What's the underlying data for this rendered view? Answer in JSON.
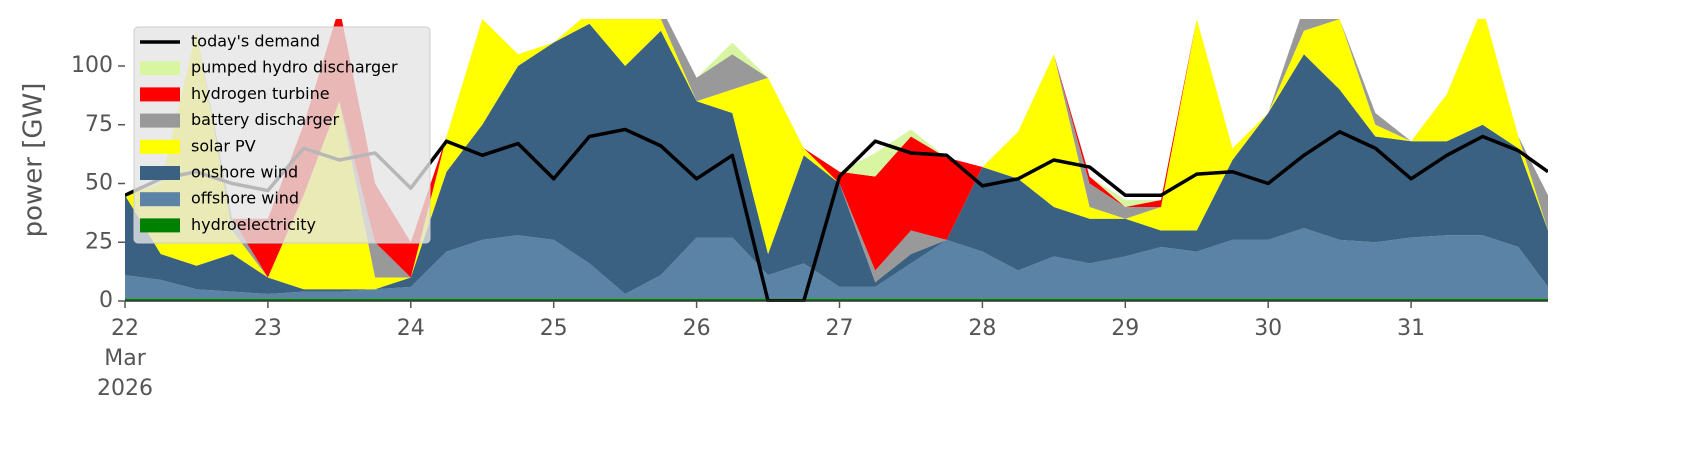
{
  "chart_data": {
    "type": "area",
    "stacked": true,
    "ylabel": "power [GW]",
    "x": [
      22,
      22.25,
      22.5,
      22.75,
      23,
      23.25,
      23.5,
      23.75,
      24,
      24.25,
      24.5,
      24.75,
      25,
      25.25,
      25.5,
      25.75,
      26,
      26.25,
      26.5,
      26.75,
      27,
      27.25,
      27.5,
      27.75,
      28,
      28.25,
      28.5,
      28.75,
      29,
      29.25,
      29.5,
      29.75,
      30,
      30.25,
      30.5,
      30.75,
      31,
      31.25,
      31.5,
      31.75,
      31.958
    ],
    "xlim": [
      22,
      31.958
    ],
    "xticks": [
      22,
      23,
      24,
      25,
      26,
      27,
      28,
      29,
      30,
      31
    ],
    "xtick_sublabels": [
      "Mar",
      "2026"
    ],
    "ylim": [
      0,
      120
    ],
    "yticks": [
      0,
      25,
      50,
      75,
      100
    ],
    "legend": "upper left",
    "series": [
      {
        "name": "today's demand",
        "type": "line",
        "color": "#000000",
        "values": [
          45,
          52,
          55,
          50,
          47,
          65,
          60,
          63,
          48,
          68,
          62,
          67,
          52,
          70,
          73,
          66,
          52,
          62,
          0,
          0,
          53,
          68,
          63,
          62,
          49,
          52,
          60,
          57,
          45,
          45,
          54,
          55,
          50,
          62,
          72,
          65,
          52,
          62,
          70,
          64,
          55
        ]
      },
      {
        "name": "pumped hydro discharger",
        "type": "area",
        "color": "#d8f5a2",
        "values": [
          0,
          0,
          0,
          0,
          0,
          0,
          0,
          0,
          0,
          0,
          0,
          0,
          0,
          0,
          0,
          0,
          0,
          5,
          0,
          0,
          0,
          10,
          3,
          0,
          0,
          0,
          0,
          0,
          3,
          0,
          0,
          0,
          0,
          0,
          0,
          0,
          0,
          0,
          0,
          0,
          0
        ]
      },
      {
        "name": "hydrogen turbine",
        "type": "area",
        "color": "#ff0000",
        "values": [
          0,
          0,
          0,
          0,
          25,
          30,
          40,
          25,
          15,
          0,
          0,
          0,
          0,
          0,
          0,
          0,
          0,
          0,
          0,
          0,
          5,
          40,
          40,
          35,
          0,
          0,
          0,
          3,
          0,
          3,
          0,
          0,
          0,
          0,
          0,
          0,
          0,
          0,
          0,
          0,
          0
        ]
      },
      {
        "name": "battery discharger",
        "type": "area",
        "color": "#999999",
        "values": [
          0,
          0,
          0,
          5,
          0,
          0,
          0,
          15,
          0,
          0,
          0,
          0,
          0,
          0,
          0,
          5,
          10,
          15,
          0,
          0,
          0,
          5,
          10,
          0,
          0,
          0,
          0,
          10,
          5,
          0,
          0,
          0,
          0,
          10,
          0,
          5,
          0,
          0,
          0,
          0,
          15
        ]
      },
      {
        "name": "solar PV",
        "type": "area",
        "color": "#ffff00",
        "values": [
          0,
          30,
          100,
          10,
          0,
          40,
          80,
          5,
          0,
          15,
          45,
          5,
          0,
          5,
          20,
          5,
          0,
          10,
          75,
          3,
          0,
          0,
          0,
          0,
          0,
          20,
          65,
          5,
          0,
          10,
          90,
          5,
          0,
          10,
          30,
          5,
          0,
          20,
          50,
          5,
          0
        ]
      },
      {
        "name": "onshore wind",
        "type": "area",
        "color": "#3b6182",
        "values": [
          34,
          11,
          10,
          16,
          7,
          1,
          1,
          0,
          4,
          34,
          49,
          72,
          84,
          102,
          97,
          104,
          58,
          53,
          9,
          46,
          44,
          2,
          4,
          0,
          36,
          39,
          21,
          19,
          16,
          7,
          9,
          34,
          54,
          74,
          64,
          45,
          41,
          40,
          47,
          42,
          24
        ]
      },
      {
        "name": "offshore wind",
        "type": "area",
        "color": "#5b83a6",
        "values": [
          10,
          8,
          4,
          3,
          2,
          3,
          3,
          4,
          5,
          20,
          25,
          27,
          25,
          15,
          2,
          10,
          26,
          26,
          10,
          15,
          5,
          5,
          15,
          25,
          20,
          12,
          18,
          15,
          18,
          22,
          20,
          25,
          25,
          30,
          25,
          24,
          26,
          27,
          27,
          22,
          5
        ]
      },
      {
        "name": "hydroelectricity",
        "type": "area",
        "color": "#008000",
        "values": [
          1,
          1,
          1,
          1,
          1,
          1,
          1,
          1,
          1,
          1,
          1,
          1,
          1,
          1,
          1,
          1,
          1,
          1,
          1,
          1,
          1,
          1,
          1,
          1,
          1,
          1,
          1,
          1,
          1,
          1,
          1,
          1,
          1,
          1,
          1,
          1,
          1,
          1,
          1,
          1,
          1
        ]
      }
    ]
  }
}
